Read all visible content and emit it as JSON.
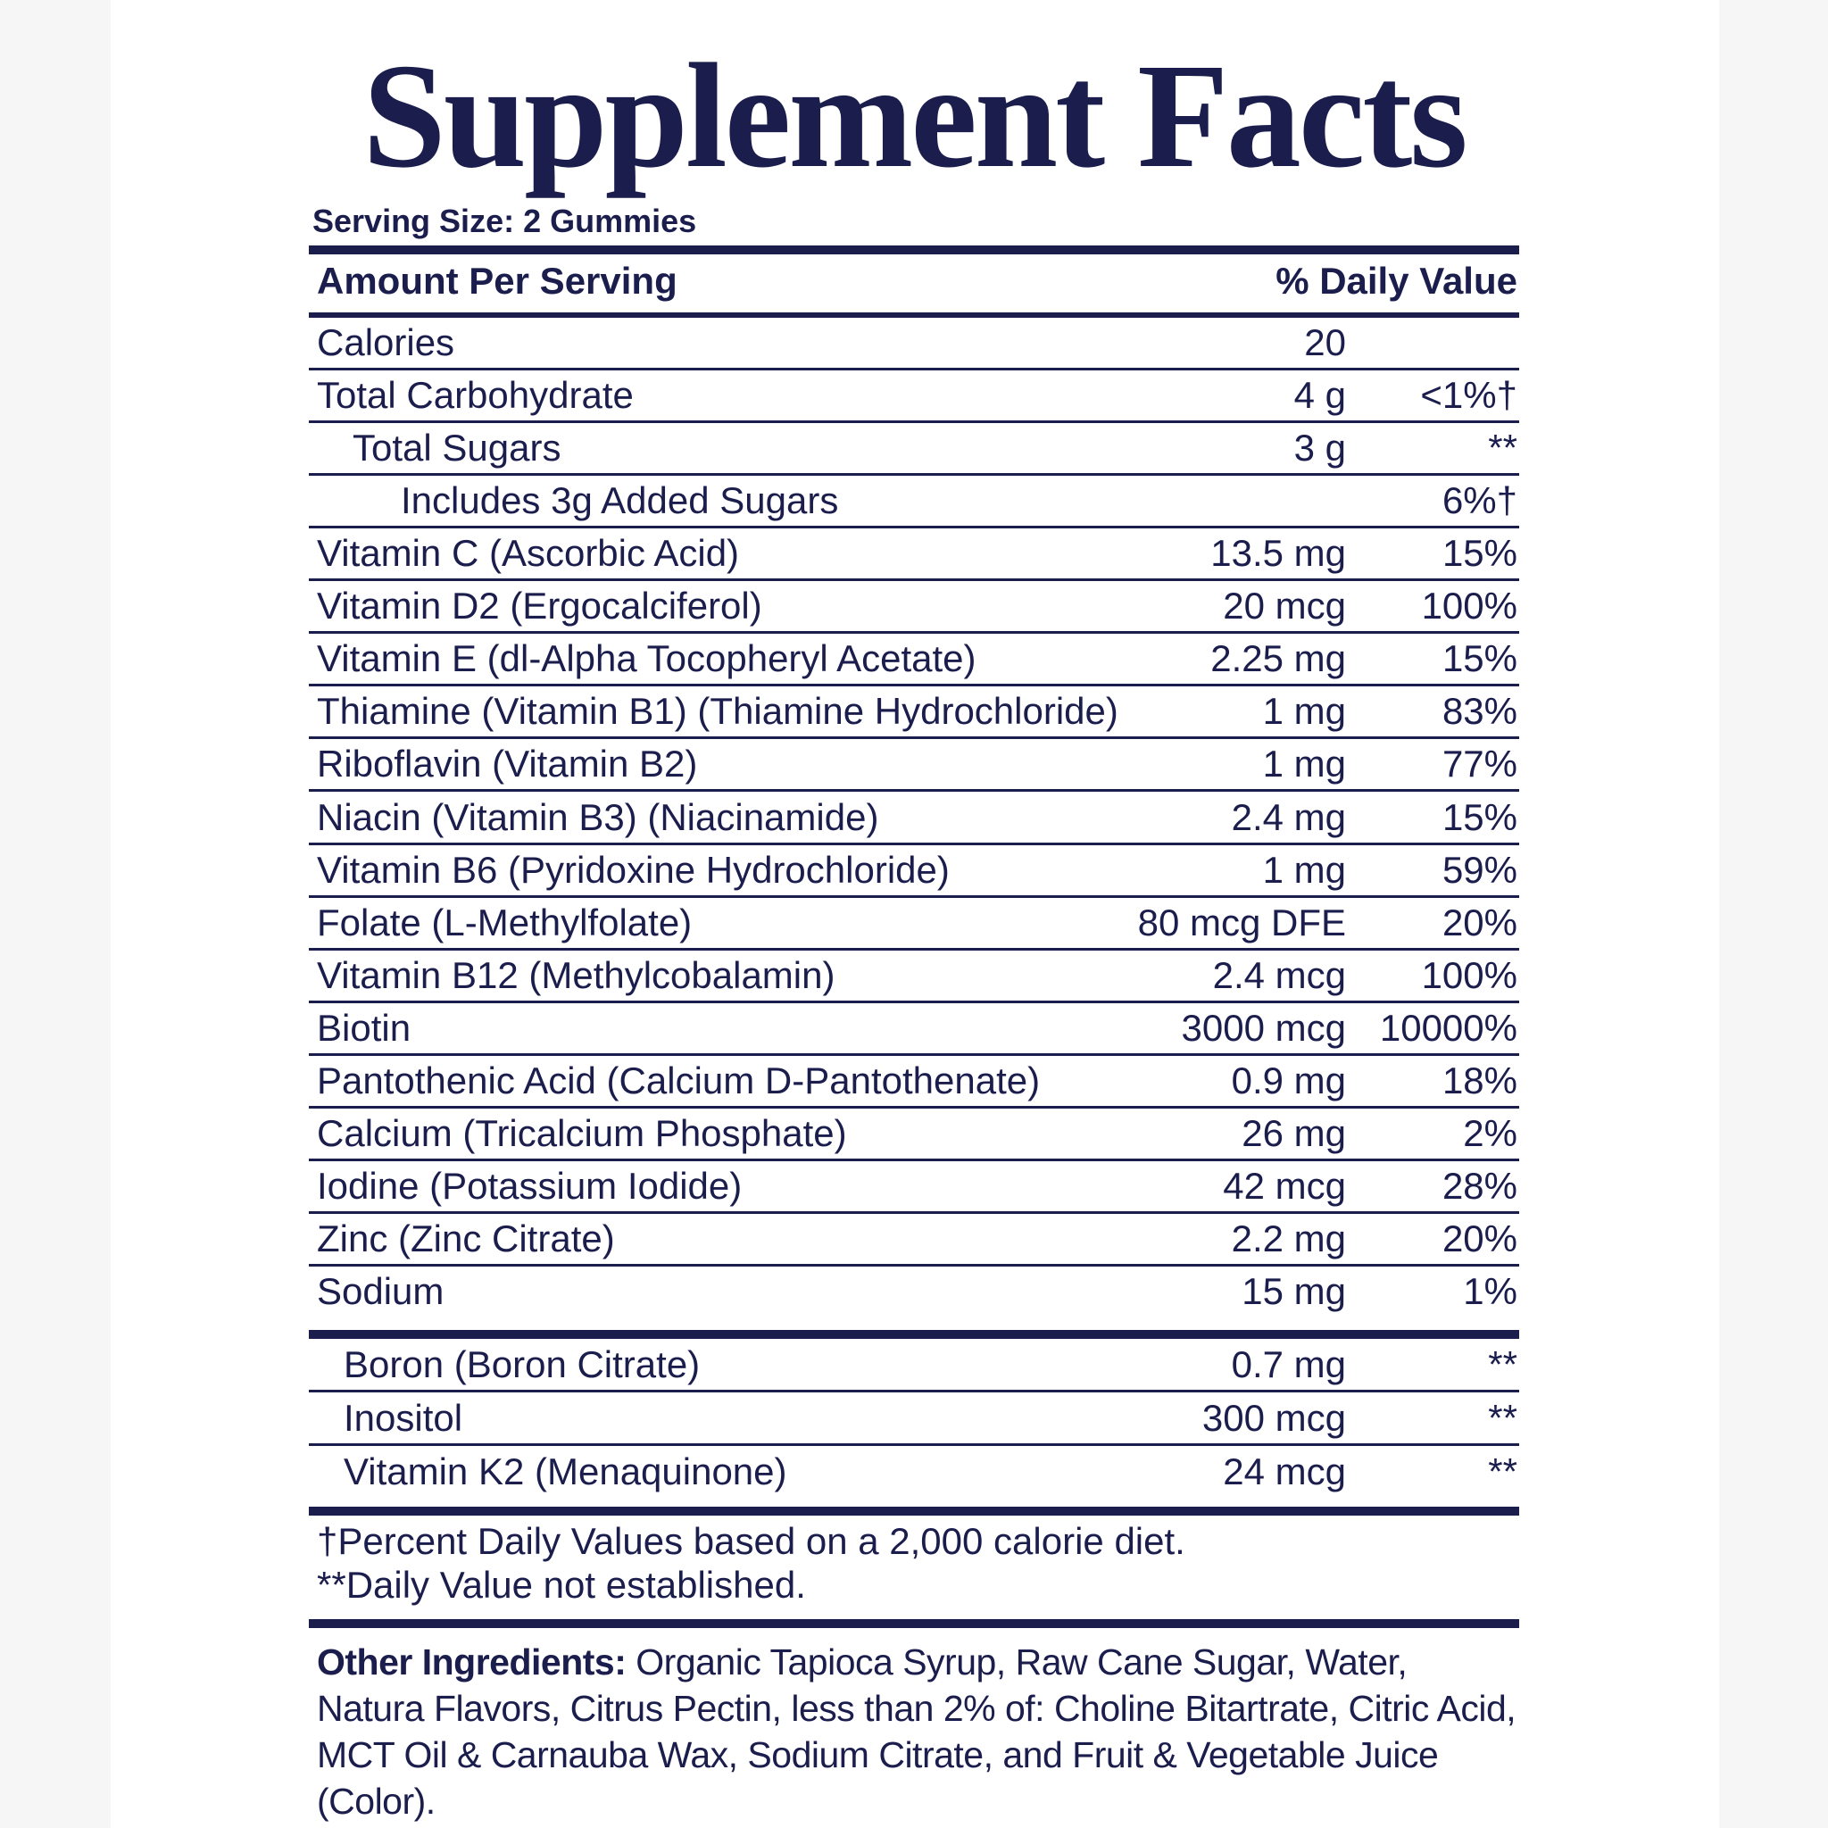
{
  "header": {
    "title": "Supplement Facts",
    "serving_size": "Serving Size: 2 Gummies"
  },
  "table": {
    "columns": [
      "Amount Per Serving",
      "% Daily Value"
    ],
    "rows": [
      {
        "name": "Calories",
        "amount": "20"
      },
      {
        "name": "Total Carbohydrate",
        "amount": "4 g",
        "daily_value": "<1%†"
      },
      {
        "name": "Total Sugars",
        "amount": "3 g",
        "daily_value": "**"
      },
      {
        "name": "Includes 3g Added Sugars",
        "daily_value": "6%†"
      },
      {
        "name": "Vitamin C (Ascorbic Acid)",
        "amount": "13.5 mg",
        "daily_value": "15%"
      },
      {
        "name": "Vitamin D2 (Ergocalciferol)",
        "amount": "20 mcg",
        "daily_value": "100%"
      },
      {
        "name": "Vitamin E (dl-Alpha Tocopheryl Acetate)",
        "amount": "2.25 mg",
        "daily_value": "15%"
      },
      {
        "name": "Thiamine (Vitamin B1) (Thiamine Hydrochloride)",
        "amount": "1 mg",
        "daily_value": "83%"
      },
      {
        "name": "Riboflavin (Vitamin B2)",
        "amount": "1 mg",
        "daily_value": "77%"
      },
      {
        "name": "Niacin (Vitamin B3) (Niacinamide)",
        "amount": "2.4 mg",
        "daily_value": "15%"
      },
      {
        "name": "Vitamin B6 (Pyridoxine Hydrochloride)",
        "amount": "1 mg",
        "daily_value": "59%"
      },
      {
        "name": "Folate (L-Methylfolate)",
        "amount": "80 mcg DFE",
        "daily_value": "20%"
      },
      {
        "name": "Vitamin B12 (Methylcobalamin)",
        "amount": "2.4 mcg",
        "daily_value": "100%"
      },
      {
        "name": "Biotin",
        "amount": "3000 mcg",
        "daily_value": "10000%"
      },
      {
        "name": "Pantothenic Acid (Calcium D-Pantothenate)",
        "amount": "0.9 mg",
        "daily_value": "18%"
      },
      {
        "name": "Calcium (Tricalcium Phosphate)",
        "amount": "26 mg",
        "daily_value": "2%"
      },
      {
        "name": "Iodine (Potassium Iodide)",
        "amount": "42 mcg",
        "daily_value": "28%"
      },
      {
        "name": "Zinc (Zinc Citrate)",
        "amount": "2.2 mg",
        "daily_value": "20%"
      },
      {
        "name": "Sodium",
        "amount": "15 mg",
        "daily_value": "1%"
      }
    ],
    "other_rows": [
      {
        "name": "Boron (Boron Citrate)",
        "amount": "0.7 mg",
        "daily_value": "**"
      },
      {
        "name": "Inositol",
        "amount": "300 mcg",
        "daily_value": "**"
      },
      {
        "name": "Vitamin K2 (Menaquinone)",
        "amount": "24 mcg",
        "daily_value": "**"
      }
    ]
  },
  "footnotes": [
    "†Percent Daily Values based on a 2,000 calorie diet.",
    "**Daily Value not established."
  ],
  "ingredients": {
    "label": "Other Ingredients:",
    "text": "Organic Tapioca Syrup, Raw Cane Sugar, Water, Natura Flavors, Citrus Pectin, less than 2% of: Choline Bitartrate, Citric Acid, MCT Oil & Carnauba Wax, Sodium Citrate, and Fruit & Vegetable Juice (Color)."
  }
}
